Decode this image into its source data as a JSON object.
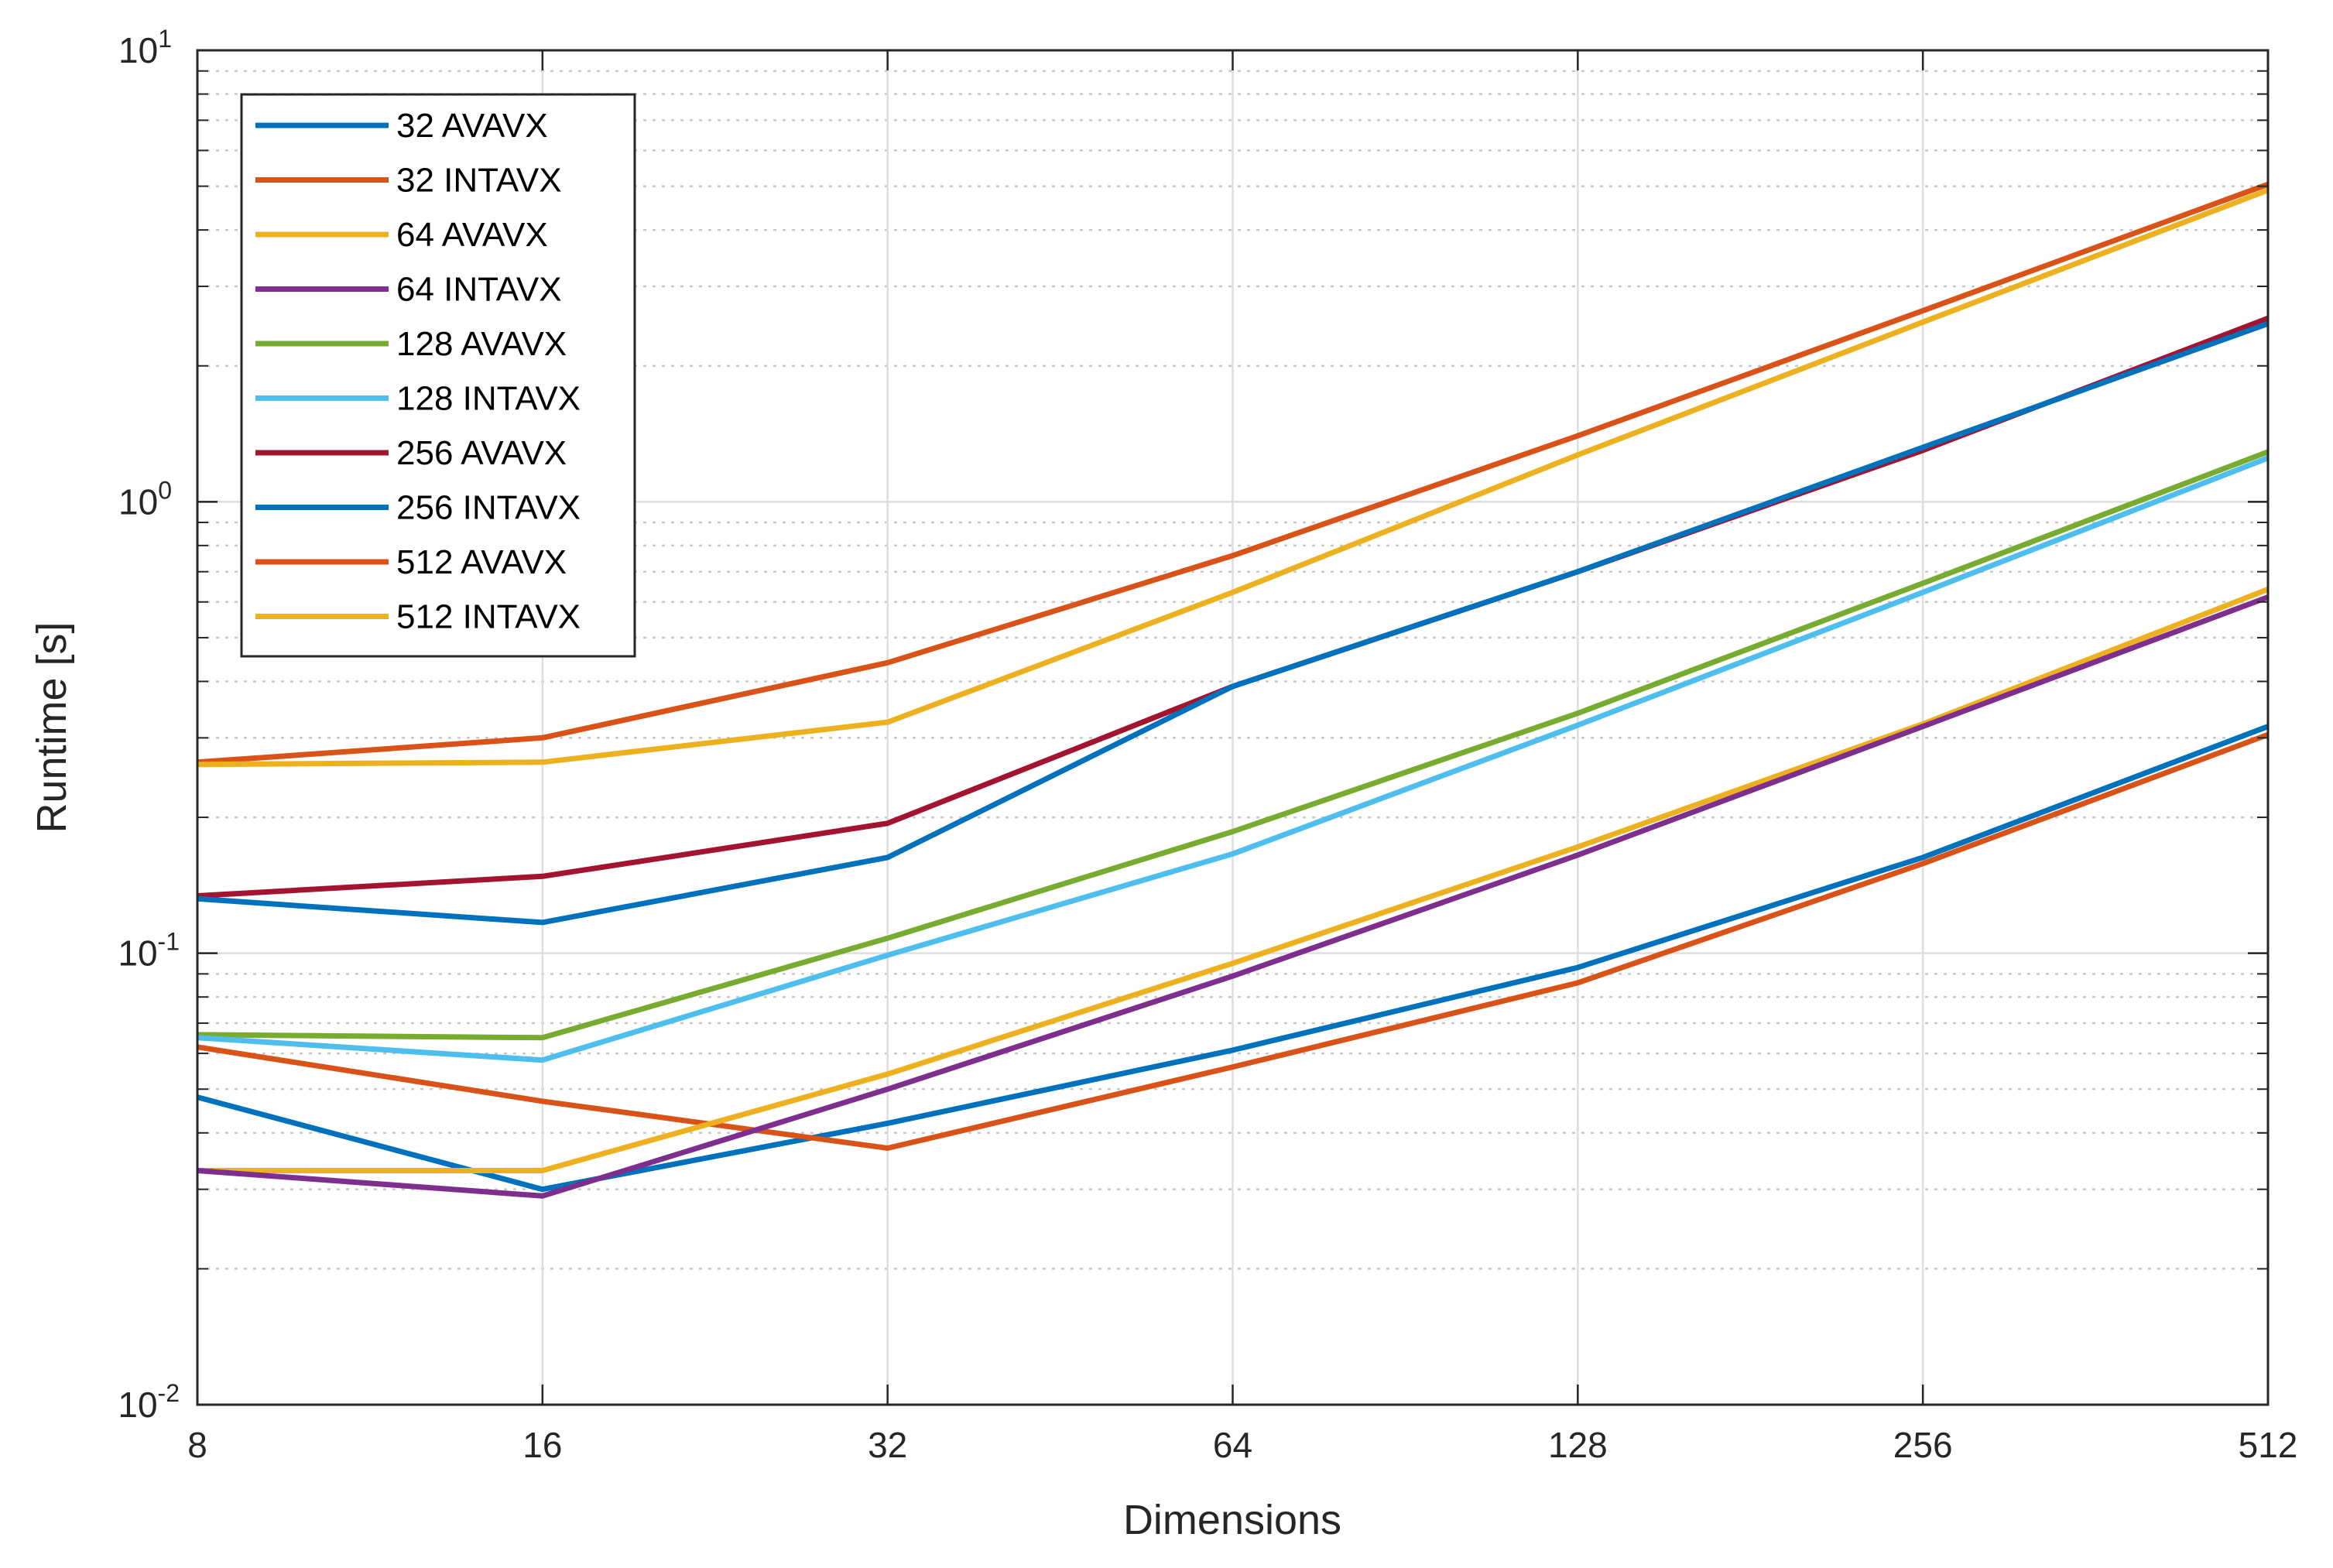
{
  "chart_data": {
    "type": "line",
    "title": "",
    "xlabel": "Dimensions",
    "ylabel": "Runtime [s]",
    "xscale": "log2",
    "yscale": "log10",
    "xlim": [
      8,
      512
    ],
    "ylim": [
      0.01,
      10
    ],
    "grid": true,
    "legend_position": "top-left",
    "x": [
      8,
      16,
      32,
      64,
      128,
      256,
      512
    ],
    "x_tick_labels": [
      "8",
      "16",
      "32",
      "64",
      "128",
      "256",
      "512"
    ],
    "y_ticks": [
      {
        "value": 0.01,
        "base": "10",
        "exp": "-2"
      },
      {
        "value": 0.1,
        "base": "10",
        "exp": "-1"
      },
      {
        "value": 1,
        "base": "10",
        "exp": "0"
      },
      {
        "value": 10,
        "base": "10",
        "exp": "1"
      }
    ],
    "series": [
      {
        "name": "32 AVAVX",
        "color": "#0072BD",
        "values": [
          0.048,
          0.03,
          0.042,
          0.061,
          0.093,
          0.163,
          0.318
        ]
      },
      {
        "name": "32 INTAVX",
        "color": "#D95319",
        "values": [
          0.062,
          0.047,
          0.037,
          0.056,
          0.086,
          0.158,
          0.305
        ]
      },
      {
        "name": "64 AVAVX",
        "color": "#EDB120",
        "values": [
          0.033,
          0.033,
          0.054,
          0.095,
          0.172,
          0.322,
          0.64
        ]
      },
      {
        "name": "64 INTAVX",
        "color": "#7E2F8E",
        "values": [
          0.033,
          0.029,
          0.05,
          0.089,
          0.165,
          0.318,
          0.615
        ]
      },
      {
        "name": "128 AVAVX",
        "color": "#77AC30",
        "values": [
          0.066,
          0.065,
          0.108,
          0.186,
          0.34,
          0.66,
          1.29
        ]
      },
      {
        "name": "128 INTAVX",
        "color": "#4DBEEE",
        "values": [
          0.065,
          0.058,
          0.099,
          0.166,
          0.32,
          0.63,
          1.25
        ]
      },
      {
        "name": "256 AVAVX",
        "color": "#A2142F",
        "values": [
          0.134,
          0.148,
          0.194,
          0.39,
          0.7,
          1.3,
          2.55
        ]
      },
      {
        "name": "256 INTAVX",
        "color": "#0072BD",
        "values": [
          0.132,
          0.117,
          0.163,
          0.39,
          0.7,
          1.32,
          2.48
        ]
      },
      {
        "name": "512 AVAVX",
        "color": "#D95319",
        "values": [
          0.265,
          0.3,
          0.44,
          0.76,
          1.4,
          2.65,
          5.05
        ]
      },
      {
        "name": "512 INTAVX",
        "color": "#EDB120",
        "values": [
          0.262,
          0.265,
          0.325,
          0.63,
          1.27,
          2.5,
          4.9
        ]
      }
    ]
  }
}
